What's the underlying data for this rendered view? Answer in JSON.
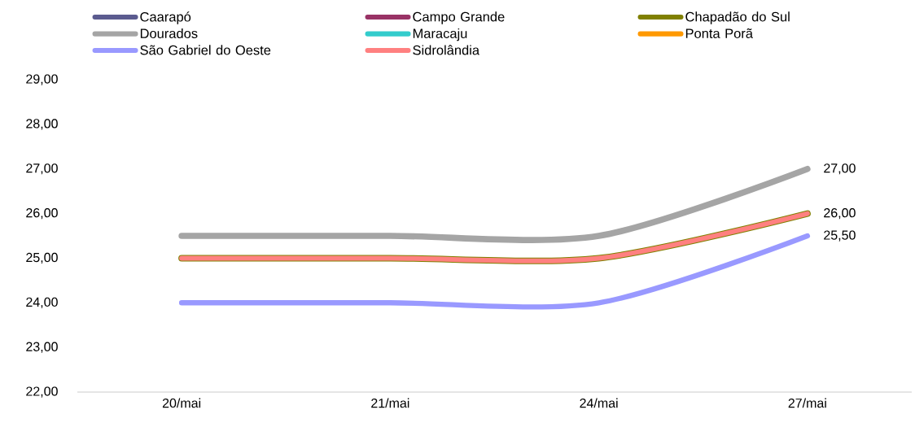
{
  "chart_data": {
    "type": "line",
    "categories": [
      "20/mai",
      "21/mai",
      "24/mai",
      "27/mai"
    ],
    "series": [
      {
        "name": "Caarapó",
        "color": "#5b5b8f",
        "values": [
          null,
          null,
          null,
          null
        ]
      },
      {
        "name": "Campo Grande",
        "color": "#993366",
        "values": [
          null,
          null,
          null,
          null
        ]
      },
      {
        "name": "Chapadão do Sul",
        "color": "#808000",
        "values": [
          25,
          25,
          25,
          26
        ]
      },
      {
        "name": "Dourados",
        "color": "#a5a5a5",
        "values": [
          25.5,
          25.5,
          25.5,
          27
        ],
        "value_labels": [
          null,
          null,
          null,
          "27,00"
        ]
      },
      {
        "name": "Maracaju",
        "color": "#33cccc",
        "values": [
          null,
          null,
          null,
          null
        ]
      },
      {
        "name": "Ponta Porã",
        "color": "#ff9900",
        "values": [
          null,
          null,
          null,
          null
        ]
      },
      {
        "name": "São Gabriel do Oeste",
        "color": "#9999ff",
        "values": [
          24,
          24,
          24,
          25.5
        ],
        "value_labels": [
          null,
          null,
          null,
          "25,50"
        ]
      },
      {
        "name": "Sidrolândia",
        "color": "#ff8080",
        "values": [
          25,
          25,
          25,
          26
        ],
        "value_labels": [
          null,
          null,
          null,
          "26,00"
        ]
      }
    ],
    "ylim": [
      22,
      29
    ],
    "yticks": [
      {
        "value": 22,
        "label": "22,00"
      },
      {
        "value": 23,
        "label": "23,00"
      },
      {
        "value": 24,
        "label": "24,00"
      },
      {
        "value": 25,
        "label": "25,00"
      },
      {
        "value": 26,
        "label": "26,00"
      },
      {
        "value": 27,
        "label": "27,00"
      },
      {
        "value": 28,
        "label": "28,00"
      },
      {
        "value": 29,
        "label": "29,00"
      }
    ],
    "legend": "top",
    "line_style": "solid"
  }
}
